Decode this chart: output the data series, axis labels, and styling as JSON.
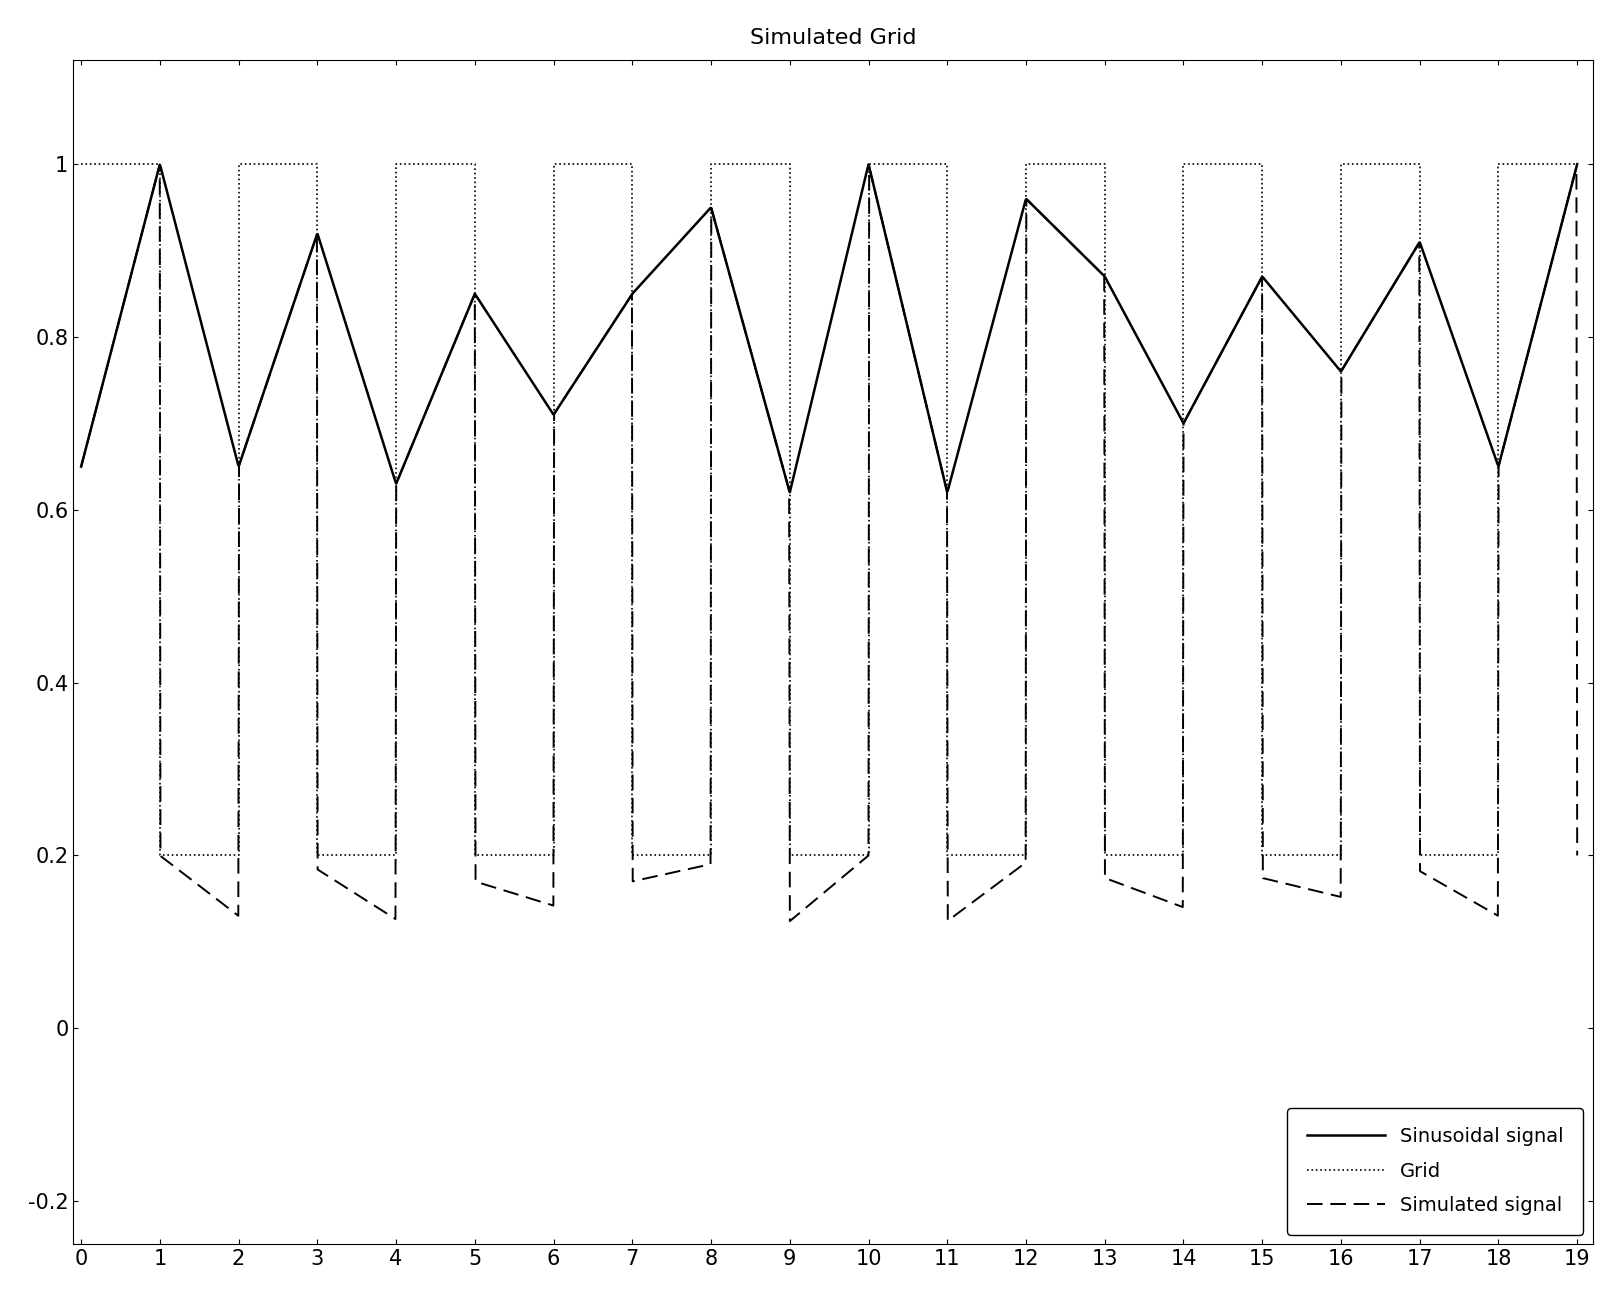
{
  "title": "Simulated Grid",
  "xlim": [
    -0.1,
    19.2
  ],
  "ylim": [
    -0.25,
    1.12
  ],
  "xticks": [
    0,
    1,
    2,
    3,
    4,
    5,
    6,
    7,
    8,
    9,
    10,
    11,
    12,
    13,
    14,
    15,
    16,
    17,
    18,
    19
  ],
  "yticks": [
    -0.2,
    0,
    0.2,
    0.4,
    0.6,
    0.8,
    1.0
  ],
  "legend_labels": [
    "Sinusoidal signal",
    "Grid",
    "Simulated signal"
  ],
  "background_color": "#ffffff",
  "title_fontsize": 16
}
